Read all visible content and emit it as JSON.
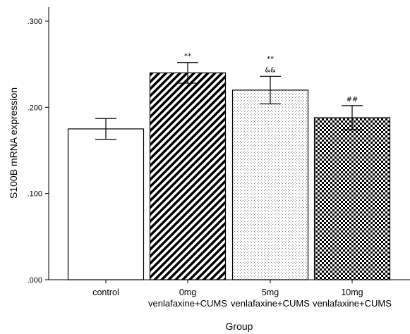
{
  "chart_data": {
    "type": "bar",
    "xlabel": "Group",
    "ylabel": "S100B mRNA expression",
    "ylim": [
      0,
      0.3
    ],
    "yticks": [
      {
        "value": 0.0,
        "label": ".000"
      },
      {
        "value": 0.1,
        "label": ".100"
      },
      {
        "value": 0.2,
        "label": ".200"
      },
      {
        "value": 0.3,
        "label": ".300"
      }
    ],
    "grid": false,
    "categories": [
      {
        "lines": [
          "control"
        ],
        "value": 0.175,
        "error": 0.012,
        "pattern": "white",
        "annotations": []
      },
      {
        "lines": [
          "0mg",
          "venlafaxine+CUMS"
        ],
        "value": 0.24,
        "error": 0.012,
        "pattern": "diagonal-stripes",
        "annotations": [
          "**"
        ]
      },
      {
        "lines": [
          "5mg",
          "venlafaxine+CUMS"
        ],
        "value": 0.22,
        "error": 0.016,
        "pattern": "light-dots",
        "annotations": [
          "**",
          "&&"
        ]
      },
      {
        "lines": [
          "10mg",
          "venlafaxine+CUMS"
        ],
        "value": 0.188,
        "error": 0.014,
        "pattern": "checkerboard",
        "annotations": [
          "##"
        ]
      }
    ]
  }
}
